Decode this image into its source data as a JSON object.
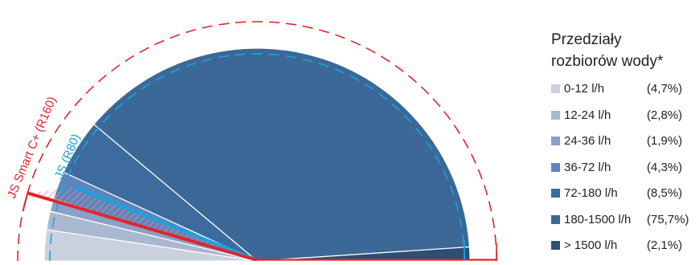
{
  "chart_data": {
    "type": "pie",
    "legend_title_lines": [
      "Przedziały",
      "rozbiorów wody*"
    ],
    "legend_placement": "right",
    "categories": [
      "0-12 l/h",
      "12-24 l/h",
      "24-36 l/h",
      "36-72 l/h",
      "72-180 l/h",
      "180-1500 l/h",
      "> 1500 l/h"
    ],
    "values": [
      4.7,
      2.8,
      1.9,
      4.3,
      8.5,
      75.7,
      2.1
    ],
    "value_labels": [
      "(4,7%)",
      "(2,8%)",
      "(1,9%)",
      "(4,3%)",
      "(8,5%)",
      "(75,7%)",
      "(2,1%)"
    ],
    "colors": [
      "#c9d1de",
      "#aab8cf",
      "#8aa0c4",
      "#5e86bc",
      "#3e6b9e",
      "#3b6896",
      "#2f4f72"
    ],
    "annotations": [
      {
        "text": "JS Smart C+ (R160)",
        "color": "#e2252b"
      },
      {
        "text": "JS (R80)",
        "color": "#1aa3dd"
      }
    ]
  }
}
